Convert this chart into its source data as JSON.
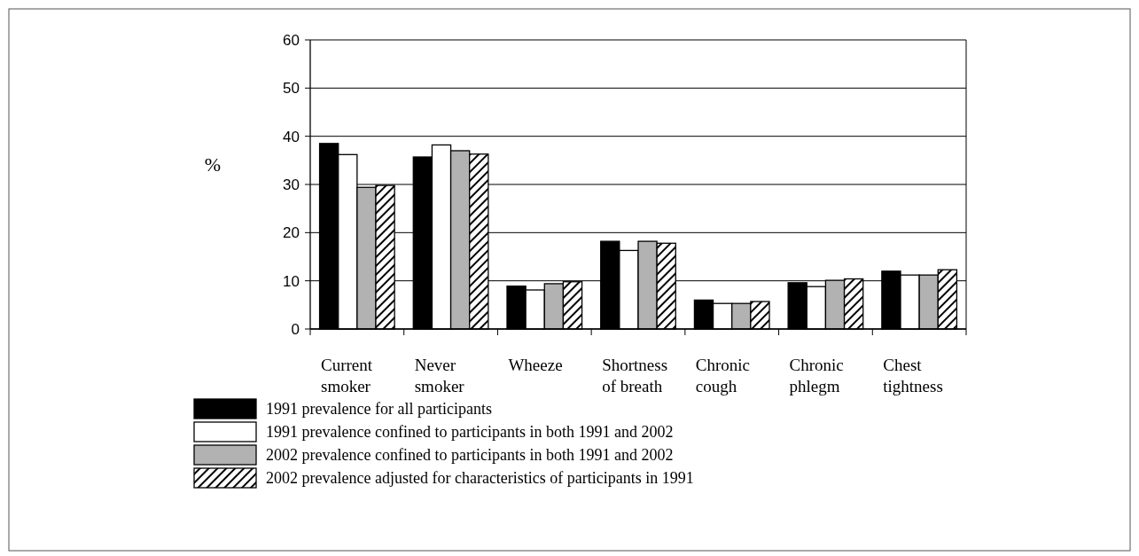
{
  "chart_data": {
    "type": "bar",
    "ylabel": "%",
    "categories": [
      "Current smoker",
      "Never smoker",
      "Wheeze",
      "Shortness of breath",
      "Chronic cough",
      "Chronic phlegm",
      "Chest tightness"
    ],
    "series": [
      {
        "name": "1991 prevalence for all participants",
        "color": "#000000",
        "values": [
          38.5,
          35.7,
          8.9,
          18.2,
          6.0,
          9.6,
          12.0
        ]
      },
      {
        "name": "1991 prevalence confined to participants in both 1991 and 2002",
        "color": "#ffffff",
        "values": [
          36.2,
          38.2,
          8.1,
          16.3,
          5.3,
          8.8,
          11.2
        ]
      },
      {
        "name": "2002 prevalence confined to participants in both 1991 and 2002",
        "color": "#b2b2b2",
        "values": [
          29.4,
          37.0,
          9.4,
          18.2,
          5.3,
          10.1,
          11.2
        ]
      },
      {
        "name": "2002 prevalence adjusted for characteristics of participants in 1991",
        "color": "#000000",
        "values": [
          29.8,
          36.3,
          9.8,
          17.8,
          5.7,
          10.4,
          12.3
        ]
      }
    ],
    "ylim": [
      0,
      60
    ],
    "yticks": [
      0,
      10,
      20,
      30,
      40,
      50,
      60
    ],
    "grid": "y",
    "legend": "bottom"
  }
}
